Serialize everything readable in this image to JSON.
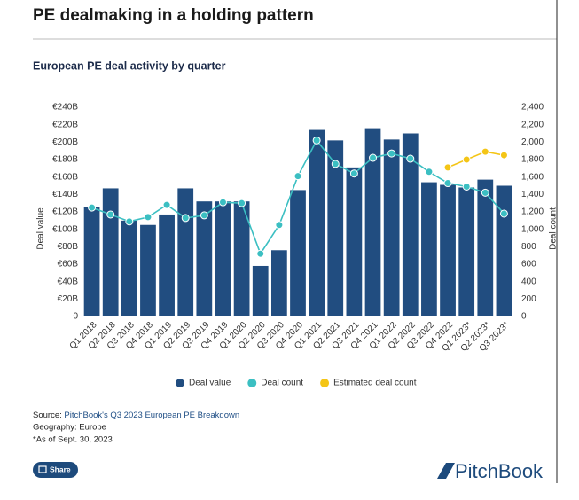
{
  "page": {
    "title": "PE dealmaking in a holding pattern",
    "source_label": "Source:",
    "source_link": "PitchBook's Q3 2023 European PE Breakdown",
    "notes": [
      "Geography: Europe",
      "*As of Sept. 30, 2023"
    ],
    "share": "Share",
    "logo": "PitchBook"
  },
  "chart_data": {
    "type": "bar",
    "title": "European PE deal activity by quarter",
    "ylabel": "Deal value",
    "y2label": "Deal count",
    "categories": [
      "Q1 2018",
      "Q2 2018",
      "Q3 2018",
      "Q4 2018",
      "Q1 2019",
      "Q2 2019",
      "Q3 2019",
      "Q4 2019",
      "Q1 2020",
      "Q2 2020",
      "Q3 2020",
      "Q4 2020",
      "Q1 2021",
      "Q2 2021",
      "Q3 2021",
      "Q4 2021",
      "Q1 2022",
      "Q2 2022",
      "Q3 2022",
      "Q4 2022",
      "Q1 2023*",
      "Q2 2023*",
      "Q3 2023*"
    ],
    "series": [
      {
        "name": "Deal value",
        "type": "bar",
        "color": "#214d80",
        "axis": "y",
        "values": [
          126,
          147,
          110,
          105,
          117,
          147,
          132,
          132,
          132,
          58,
          76,
          145,
          214,
          202,
          171,
          216,
          203,
          210,
          154,
          151,
          148,
          157,
          150
        ]
      },
      {
        "name": "Deal count",
        "type": "line",
        "color": "#3bbfc2",
        "axis": "y2",
        "values": [
          1250,
          1170,
          1090,
          1140,
          1280,
          1130,
          1160,
          1310,
          1300,
          720,
          1050,
          1610,
          2020,
          1750,
          1640,
          1820,
          1870,
          1810,
          1660,
          1530,
          1490,
          1420,
          1180
        ]
      },
      {
        "name": "Estimated deal count",
        "type": "line",
        "color": "#f4c516",
        "axis": "y2",
        "values": [
          null,
          null,
          null,
          null,
          null,
          null,
          null,
          null,
          null,
          null,
          null,
          null,
          null,
          null,
          null,
          null,
          null,
          null,
          null,
          1710,
          1800,
          1890,
          1850
        ]
      }
    ],
    "ylim": [
      0,
      240
    ],
    "yticks": [
      0,
      {
        "value": 20,
        "label": "€20B"
      },
      {
        "value": 40,
        "label": "€40B"
      },
      {
        "value": 60,
        "label": "€60B"
      },
      {
        "value": 80,
        "label": "€80B"
      },
      {
        "value": 100,
        "label": "€100B"
      },
      {
        "value": 120,
        "label": "€120B"
      },
      {
        "value": 140,
        "label": "€140B"
      },
      {
        "value": 160,
        "label": "€160B"
      },
      {
        "value": 180,
        "label": "€180B"
      },
      {
        "value": 200,
        "label": "€200B"
      },
      {
        "value": 220,
        "label": "€220B"
      },
      {
        "value": 240,
        "label": "€240B"
      }
    ],
    "y2lim": [
      0,
      2400
    ],
    "y2ticks": [
      0,
      200,
      400,
      600,
      800,
      {
        "value": 1000,
        "label": "1,000"
      },
      {
        "value": 1200,
        "label": "1,200"
      },
      {
        "value": 1400,
        "label": "1,400"
      },
      {
        "value": 1600,
        "label": "1,600"
      },
      {
        "value": 1800,
        "label": "1,800"
      },
      {
        "value": 2000,
        "label": "2,000"
      },
      {
        "value": 2200,
        "label": "2,200"
      },
      {
        "value": 2400,
        "label": "2,400"
      }
    ],
    "legend": "bottom"
  }
}
